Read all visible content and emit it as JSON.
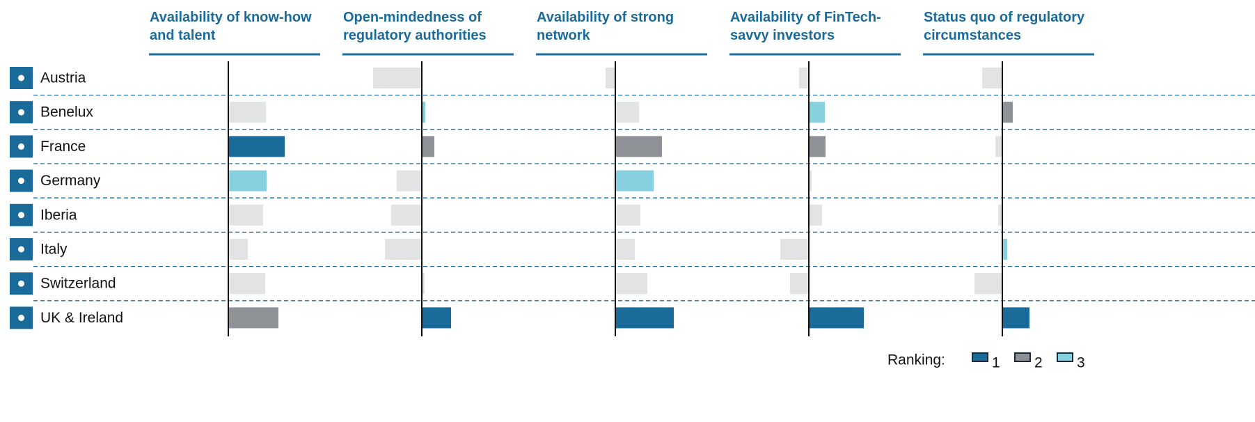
{
  "chart_data": {
    "type": "bar",
    "orientation": "horizontal",
    "categories": [
      "Austria",
      "Benelux",
      "France",
      "Germany",
      "Iberia",
      "Italy",
      "Switzerland",
      "UK & Ireland"
    ],
    "xlim": [
      -1.2,
      1.6
    ],
    "other_color": "#e2e3e5",
    "series": [
      {
        "name": "Availability of know-how and talent",
        "values": [
          0,
          0.54,
          0.81,
          0.55,
          0.5,
          0.28,
          0.53,
          0.72
        ],
        "ranks": [
          null,
          null,
          1,
          3,
          null,
          null,
          null,
          2
        ]
      },
      {
        "name": "Open-mindedness of regulatory authorities",
        "values": [
          -0.7,
          0.05,
          0.18,
          -0.36,
          -0.44,
          -0.53,
          0.04,
          0.42
        ],
        "ranks": [
          null,
          3,
          2,
          null,
          null,
          null,
          null,
          1
        ]
      },
      {
        "name": "Availability of strong network",
        "values": [
          -0.14,
          0.34,
          0.67,
          0.55,
          0.36,
          0.28,
          0.46,
          0.84
        ],
        "ranks": [
          null,
          null,
          2,
          3,
          null,
          null,
          null,
          1
        ]
      },
      {
        "name": "Availability of FinTech-savvy investors",
        "values": [
          -0.14,
          0.23,
          0.24,
          0.04,
          0.19,
          -0.41,
          -0.27,
          0.79
        ],
        "ranks": [
          null,
          3,
          2,
          null,
          null,
          null,
          null,
          1
        ]
      },
      {
        "name": "Status quo of regulatory circumstances",
        "values": [
          -0.29,
          0.15,
          -0.1,
          0,
          -0.06,
          0.07,
          -0.4,
          0.39
        ],
        "ranks": [
          null,
          2,
          null,
          null,
          null,
          3,
          null,
          1
        ]
      }
    ],
    "legend": {
      "title": "Ranking:",
      "items": [
        {
          "rank": 1,
          "color": "#1a6a9a"
        },
        {
          "rank": 2,
          "color": "#8e9196"
        },
        {
          "rank": 3,
          "color": "#86d0e0"
        }
      ]
    }
  }
}
